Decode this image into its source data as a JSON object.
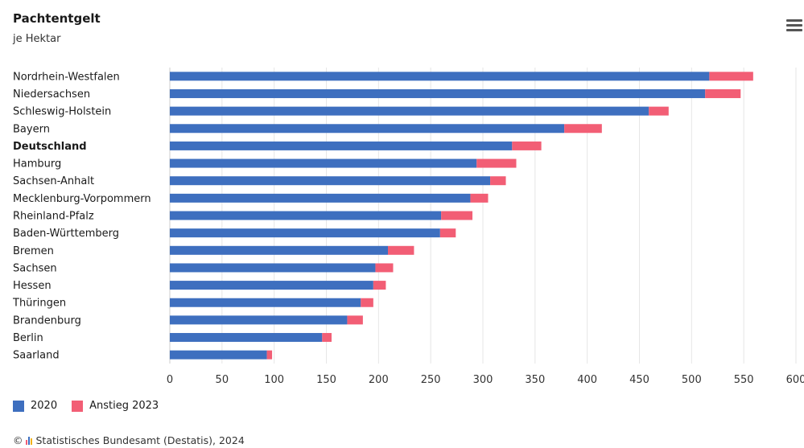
{
  "chart_data": {
    "type": "bar",
    "orientation": "horizontal",
    "stacked": true,
    "title": "Pachtentgelt",
    "subtitle": "je Hektar",
    "categories": [
      "Nordrhein-Westfalen",
      "Niedersachsen",
      "Schleswig-Holstein",
      "Bayern",
      "Deutschland",
      "Hamburg",
      "Sachsen-Anhalt",
      "Mecklenburg-Vorpommern",
      "Rheinland-Pfalz",
      "Baden-Württemberg",
      "Bremen",
      "Sachsen",
      "Hessen",
      "Thüringen",
      "Brandenburg",
      "Berlin",
      "Saarland"
    ],
    "highlight_category": "Deutschland",
    "series": [
      {
        "name": "2020",
        "color": "#3e6fbf",
        "values": [
          517,
          513,
          459,
          378,
          328,
          294,
          307,
          288,
          260,
          259,
          209,
          197,
          195,
          183,
          170,
          146,
          93
        ]
      },
      {
        "name": "Anstieg 2023",
        "color": "#f25e75",
        "values": [
          42,
          34,
          19,
          36,
          28,
          38,
          15,
          17,
          30,
          15,
          25,
          17,
          12,
          12,
          15,
          9,
          5
        ]
      }
    ],
    "x_ticks": [
      "0",
      "50",
      "100",
      "150",
      "200",
      "250",
      "300",
      "350",
      "400",
      "450",
      "500",
      "550",
      "600"
    ],
    "xlim": [
      0,
      600
    ],
    "grid": true,
    "legend_position": "bottom-left"
  },
  "ui": {
    "menu_icon": "hamburger-menu-icon",
    "credit": "Statistisches Bundesamt (Destatis), 2024",
    "copyright_symbol": "©"
  }
}
